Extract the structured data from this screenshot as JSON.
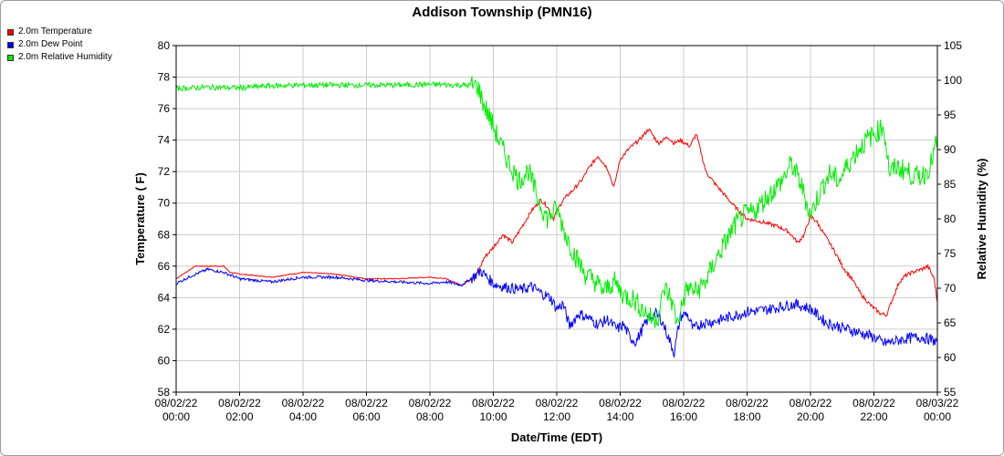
{
  "chart_data": {
    "type": "line",
    "title": "Addison Township (PMN16)",
    "xlabel": "Date/Time (EDT)",
    "ylabel": "Temperature ( F)",
    "y2label": "Relative Humidity (%)",
    "ylim": [
      58,
      80
    ],
    "y2lim": [
      55,
      105
    ],
    "xlim_hours": [
      0,
      24
    ],
    "grid": true,
    "legend_position": "top-left",
    "x_ticks": [
      {
        "date": "08/02/22",
        "time": "00:00"
      },
      {
        "date": "08/02/22",
        "time": "02:00"
      },
      {
        "date": "08/02/22",
        "time": "04:00"
      },
      {
        "date": "08/02/22",
        "time": "06:00"
      },
      {
        "date": "08/02/22",
        "time": "08:00"
      },
      {
        "date": "08/02/22",
        "time": "10:00"
      },
      {
        "date": "08/02/22",
        "time": "12:00"
      },
      {
        "date": "08/02/22",
        "time": "14:00"
      },
      {
        "date": "08/02/22",
        "time": "16:00"
      },
      {
        "date": "08/02/22",
        "time": "18:00"
      },
      {
        "date": "08/02/22",
        "time": "20:00"
      },
      {
        "date": "08/02/22",
        "time": "22:00"
      },
      {
        "date": "08/03/22",
        "time": "00:00"
      }
    ],
    "y_ticks": [
      58,
      60,
      62,
      64,
      66,
      68,
      70,
      72,
      74,
      76,
      78,
      80
    ],
    "y2_ticks": [
      55,
      60,
      65,
      70,
      75,
      80,
      85,
      90,
      95,
      100,
      105
    ],
    "series": [
      {
        "name": "2.0m Temperature",
        "axis": "left",
        "color": "#ff0000",
        "x": [
          0,
          0.3,
          0.6,
          1.0,
          1.5,
          1.7,
          2.0,
          3.0,
          4.0,
          5.0,
          6.0,
          7.0,
          8.0,
          8.5,
          9.0,
          9.3,
          9.5,
          9.7,
          10.0,
          10.3,
          10.6,
          10.9,
          11.2,
          11.5,
          11.7,
          11.9,
          12.0,
          12.2,
          12.5,
          12.8,
          13.0,
          13.3,
          13.6,
          13.8,
          14.0,
          14.3,
          14.6,
          14.9,
          15.2,
          15.5,
          15.7,
          15.9,
          16.2,
          16.4,
          16.7,
          17.0,
          17.3,
          17.6,
          18.0,
          18.5,
          19.0,
          19.3,
          19.6,
          19.8,
          20.0,
          20.2,
          20.5,
          20.8,
          21.0,
          21.3,
          21.6,
          21.9,
          22.2,
          22.4,
          22.6,
          22.8,
          23.0,
          23.2,
          23.5,
          23.7,
          23.9,
          24.0
        ],
        "y": [
          65.2,
          65.6,
          66.0,
          66.0,
          66.0,
          65.6,
          65.5,
          65.3,
          65.6,
          65.5,
          65.2,
          65.2,
          65.3,
          65.2,
          64.8,
          65.2,
          65.5,
          66.5,
          67.2,
          68.0,
          67.5,
          68.5,
          69.5,
          70.2,
          69.8,
          69.0,
          69.5,
          70.2,
          70.8,
          71.5,
          72.2,
          73.0,
          72.2,
          71.0,
          72.8,
          73.5,
          74.0,
          74.7,
          73.8,
          74.2,
          73.8,
          74.0,
          73.6,
          74.4,
          72.0,
          71.2,
          70.5,
          69.8,
          69.0,
          68.8,
          68.5,
          68.2,
          67.5,
          68.0,
          69.2,
          68.8,
          67.8,
          66.8,
          66.0,
          65.2,
          64.2,
          63.5,
          63.0,
          62.9,
          64.0,
          65.0,
          65.4,
          65.6,
          65.8,
          66.0,
          65.2,
          63.7
        ]
      },
      {
        "name": "2.0m Dew Point",
        "axis": "left",
        "color": "#0000ff",
        "x": [
          0,
          0.5,
          1.0,
          1.5,
          2.0,
          3.0,
          4.0,
          5.0,
          6.0,
          7.0,
          8.0,
          8.5,
          9.0,
          9.3,
          9.6,
          9.8,
          10.0,
          10.3,
          10.6,
          10.9,
          11.2,
          11.5,
          11.8,
          12.0,
          12.2,
          12.4,
          12.7,
          13.0,
          13.3,
          13.6,
          13.9,
          14.1,
          14.3,
          14.5,
          14.7,
          14.9,
          15.1,
          15.3,
          15.5,
          15.7,
          15.9,
          16.1,
          16.3,
          16.6,
          17.0,
          17.5,
          18.0,
          18.5,
          19.0,
          19.5,
          20.0,
          20.5,
          21.0,
          21.5,
          22.0,
          22.3,
          22.6,
          23.0,
          23.5,
          24.0
        ],
        "y": [
          64.9,
          65.4,
          65.8,
          65.6,
          65.2,
          65.0,
          65.3,
          65.3,
          65.1,
          65.0,
          64.9,
          65.0,
          64.8,
          65.2,
          65.7,
          65.3,
          64.9,
          64.7,
          64.6,
          64.5,
          64.7,
          64.3,
          64.0,
          63.3,
          63.6,
          62.2,
          63.0,
          62.7,
          62.3,
          62.6,
          62.0,
          62.3,
          61.5,
          61.2,
          62.0,
          62.7,
          63.0,
          62.6,
          61.6,
          60.5,
          62.8,
          63.0,
          62.0,
          62.4,
          62.5,
          62.8,
          63.1,
          63.2,
          63.4,
          63.6,
          63.3,
          62.4,
          62.1,
          61.8,
          61.5,
          61.1,
          61.2,
          61.4,
          61.5,
          61.2
        ]
      },
      {
        "name": "2.0m Relative Humidity",
        "axis": "right",
        "color": "#00ee00",
        "x": [
          0,
          1.0,
          2.0,
          3.0,
          4.0,
          5.0,
          6.0,
          7.0,
          8.0,
          9.0,
          9.5,
          9.7,
          9.9,
          10.2,
          10.5,
          10.8,
          11.1,
          11.4,
          11.7,
          12.0,
          12.3,
          12.6,
          12.9,
          13.2,
          13.5,
          13.8,
          14.1,
          14.4,
          14.7,
          15.0,
          15.2,
          15.4,
          15.6,
          15.8,
          16.1,
          16.4,
          16.7,
          17.0,
          17.3,
          17.6,
          17.9,
          18.2,
          18.5,
          18.8,
          19.1,
          19.4,
          19.7,
          20.0,
          20.3,
          20.6,
          20.9,
          21.2,
          21.5,
          21.8,
          22.1,
          22.3,
          22.5,
          22.7,
          23.0,
          23.3,
          23.6,
          23.8,
          24.0
        ],
        "y": [
          98.8,
          99.0,
          98.9,
          99.2,
          99.3,
          99.3,
          99.3,
          99.3,
          99.4,
          99.3,
          99.2,
          96.5,
          94.5,
          91.0,
          88.0,
          85.5,
          87.0,
          83.0,
          80.0,
          81.5,
          77.5,
          74.5,
          72.0,
          71.0,
          69.5,
          71.0,
          69.0,
          68.5,
          67.0,
          65.5,
          66.0,
          70.0,
          68.5,
          65.0,
          70.0,
          69.5,
          71.0,
          74.0,
          76.5,
          79.0,
          80.5,
          81.0,
          82.5,
          84.0,
          85.5,
          88.0,
          85.0,
          80.5,
          84.0,
          86.5,
          85.5,
          88.0,
          90.0,
          91.5,
          92.5,
          93.5,
          86.5,
          87.5,
          87.0,
          86.0,
          86.5,
          88.0,
          91.5
        ]
      }
    ]
  }
}
